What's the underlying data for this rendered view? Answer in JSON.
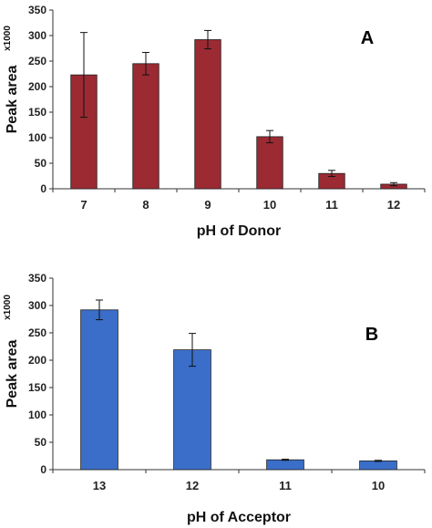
{
  "chart_data": [
    {
      "type": "bar",
      "panel_label": "A",
      "multiplier_label": "x1000",
      "xlabel": "pH of Donor",
      "ylabel": "Peak area",
      "categories": [
        "7",
        "8",
        "9",
        "10",
        "11",
        "12"
      ],
      "values": [
        223,
        245,
        292,
        102,
        30,
        9
      ],
      "errors": [
        83,
        22,
        18,
        12,
        6,
        3
      ],
      "ylim": [
        0,
        350
      ],
      "yticks": [
        0,
        50,
        100,
        150,
        200,
        250,
        300,
        350
      ],
      "bar_color": "#9b2a33",
      "grid": false
    },
    {
      "type": "bar",
      "panel_label": "B",
      "multiplier_label": "x1000",
      "xlabel": "pH of Acceptor",
      "ylabel": "Peak area",
      "categories": [
        "13",
        "12",
        "11",
        "10"
      ],
      "values": [
        292,
        219,
        18,
        16
      ],
      "errors": [
        18,
        30,
        1,
        1
      ],
      "ylim": [
        0,
        350
      ],
      "yticks": [
        0,
        50,
        100,
        150,
        200,
        250,
        300,
        350
      ],
      "bar_color": "#3a6ec8",
      "grid": false
    }
  ]
}
